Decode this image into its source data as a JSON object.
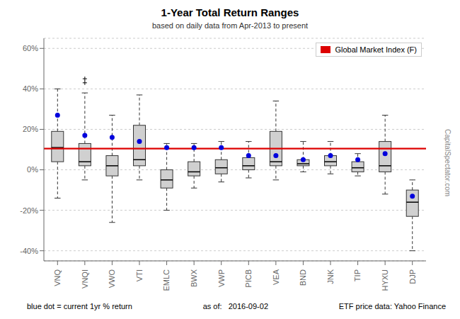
{
  "chart_data": {
    "type": "box",
    "title": "1-Year Total Return Ranges",
    "subtitle": "based on daily data from Apr-2013 to present",
    "categories": [
      "VNQ",
      "VNQI",
      "VWO",
      "VTI",
      "EMLC",
      "BWX",
      "VWP",
      "PICB",
      "VEA",
      "BND",
      "JNK",
      "TIP",
      "HYXU",
      "DJP"
    ],
    "boxes": {
      "color": "#d0d0d0",
      "values": [
        {
          "whislo": -14,
          "q1": 4,
          "med": 11,
          "q3": 19,
          "whishi": 40,
          "fliers": []
        },
        {
          "whislo": -5,
          "q1": 2,
          "med": 4,
          "q3": 13,
          "whishi": 38,
          "fliers": [
            43,
            45
          ]
        },
        {
          "whislo": -26,
          "q1": -3,
          "med": 2,
          "q3": 7,
          "whishi": 27,
          "fliers": []
        },
        {
          "whislo": -5,
          "q1": 2,
          "med": 5,
          "q3": 22,
          "whishi": 37,
          "fliers": []
        },
        {
          "whislo": -20,
          "q1": -9,
          "med": -5,
          "q3": 0,
          "whishi": 13,
          "fliers": []
        },
        {
          "whislo": -9,
          "q1": -3,
          "med": -1,
          "q3": 4,
          "whishi": 13,
          "fliers": []
        },
        {
          "whislo": -6,
          "q1": -2,
          "med": 1,
          "q3": 5,
          "whishi": 14,
          "fliers": []
        },
        {
          "whislo": -4,
          "q1": 0,
          "med": 2,
          "q3": 6,
          "whishi": 14,
          "fliers": []
        },
        {
          "whislo": -5,
          "q1": 2,
          "med": 4,
          "q3": 19,
          "whishi": 34,
          "fliers": []
        },
        {
          "whislo": -1,
          "q1": 2,
          "med": 3,
          "q3": 5,
          "whishi": 14,
          "fliers": []
        },
        {
          "whislo": -2,
          "q1": 2,
          "med": 4,
          "q3": 7,
          "whishi": 14,
          "fliers": []
        },
        {
          "whislo": -3,
          "q1": -1,
          "med": 1,
          "q3": 4,
          "whishi": 8,
          "fliers": []
        },
        {
          "whislo": -12,
          "q1": -1,
          "med": 2,
          "q3": 14,
          "whishi": 27,
          "fliers": []
        },
        {
          "whislo": -40,
          "q1": -23,
          "med": -16,
          "q3": -10,
          "whishi": -5,
          "fliers": []
        }
      ]
    },
    "dots": {
      "color": "#0000dd",
      "values": [
        27,
        17,
        16,
        14,
        11,
        11,
        11,
        7,
        7,
        5,
        7,
        5,
        8,
        -13
      ]
    },
    "reference_line": {
      "name": "Global Market Index (F)",
      "value": 10.5,
      "color": "#dd0000"
    },
    "legend": "upper right",
    "grid": true,
    "ylim": [
      -45,
      65
    ],
    "yticks": [
      {
        "value": -40,
        "label": "-40%"
      },
      {
        "value": -20,
        "label": "-20%"
      },
      {
        "value": 0,
        "label": "0%"
      },
      {
        "value": 20,
        "label": "20%"
      },
      {
        "value": 40,
        "label": "40%"
      },
      {
        "value": 60,
        "label": "60%"
      }
    ],
    "footer": [
      "blue dot = current 1yr % return",
      "as of:   2016-09-02",
      "ETF price data: Yahoo Finance"
    ],
    "watermark": "CapitalSpectator.com"
  }
}
